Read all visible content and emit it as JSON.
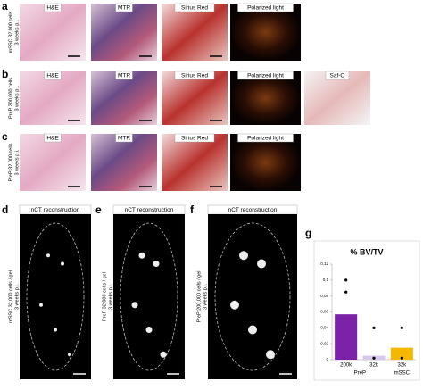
{
  "rows": [
    {
      "letter": "a",
      "sample": [
        "mSSC 32,000 cells",
        "3 weeks p.i."
      ],
      "stains": [
        "H&E",
        "MTR",
        "Sirius Red",
        "Polarized light"
      ]
    },
    {
      "letter": "b",
      "sample": [
        "PreP 200,000 cells",
        "3 weeks p.i."
      ],
      "stains": [
        "H&E",
        "MTR",
        "Sirius Red",
        "Polarized light",
        "Saf-O"
      ]
    },
    {
      "letter": "c",
      "sample": [
        "PreP 32,000 cells",
        "3 weeks p.i."
      ],
      "stains": [
        "H&E",
        "MTR",
        "Sirius Red",
        "Polarized light"
      ]
    }
  ],
  "ct_panels": [
    {
      "letter": "d",
      "title": "nCT reconstruction",
      "sample": [
        "mSSC 32,000 cells / gel",
        "3 weeks p.i."
      ]
    },
    {
      "letter": "e",
      "title": "nCT reconstruction",
      "sample": [
        "PreP 32,000 cells / gel",
        "3 weeks p.i."
      ]
    },
    {
      "letter": "f",
      "title": "nCT reconstruction",
      "sample": [
        "PreP 200,000 cells / gel",
        "3 weeks p.i."
      ]
    }
  ],
  "chart_data": {
    "type": "bar",
    "letter": "g",
    "title": "% BV/TV",
    "categories": [
      "200k",
      "32k",
      "32k"
    ],
    "groups": [
      "PreP",
      "mSSC"
    ],
    "values": [
      0.057,
      0.005,
      0.015
    ],
    "colors": [
      "#7b22a8",
      "#d9c8ee",
      "#f5b800"
    ],
    "points": [
      [
        0.1,
        0.085
      ],
      [
        0.04,
        0.002
      ],
      [
        0.04,
        0.002
      ]
    ],
    "ylim": [
      0,
      0.12
    ],
    "yticks": [
      0,
      {
        "value": 0.02,
        "label": "0,02"
      },
      {
        "value": 0.04,
        "label": "0,04"
      },
      {
        "value": 0.06,
        "label": "0,06"
      },
      {
        "value": 0.08,
        "label": "0,08"
      },
      {
        "value": 0.1,
        "label": "0,1"
      },
      {
        "value": 0.12,
        "label": "0,12"
      }
    ]
  }
}
